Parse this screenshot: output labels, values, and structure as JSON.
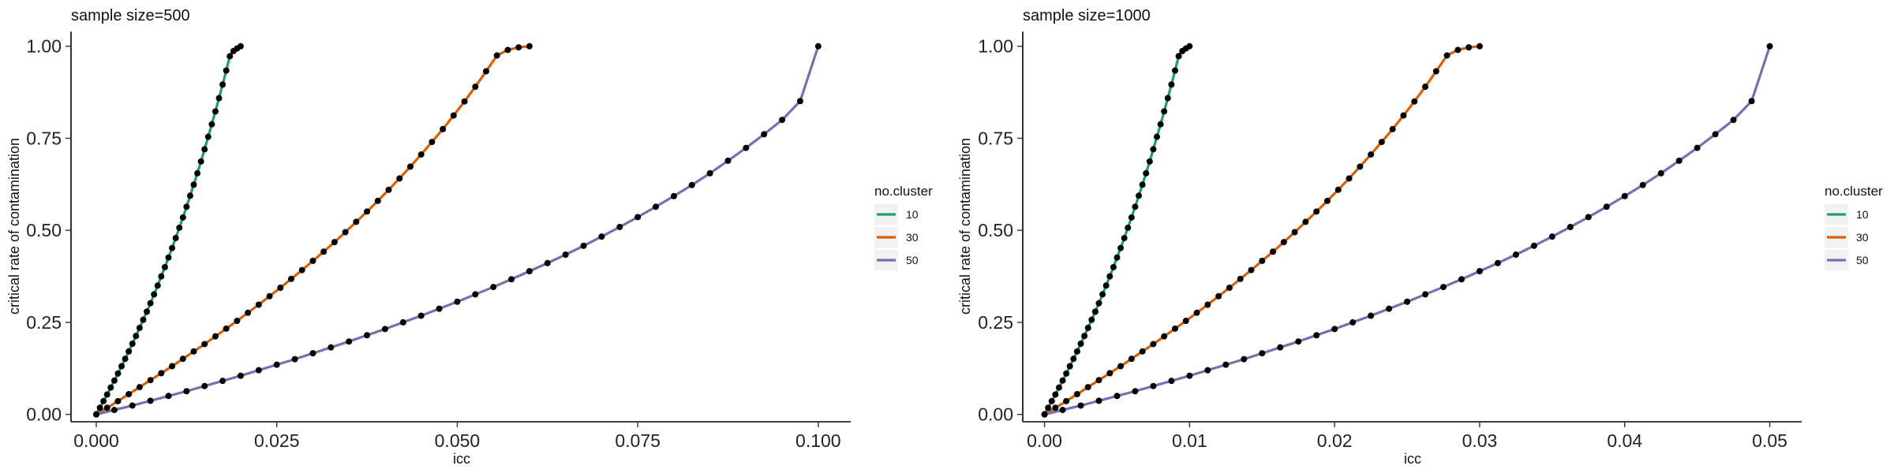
{
  "chart_data": [
    {
      "type": "line",
      "title": "sample size=500",
      "xlabel": "icc",
      "ylabel": "critical rate of contamination",
      "xlim": [
        -0.0035,
        0.1045
      ],
      "ylim": [
        -0.02,
        1.04
      ],
      "x_ticks": [
        0,
        0.025,
        0.05,
        0.075,
        0.1
      ],
      "x_tick_labels": [
        "0.000",
        "0.025",
        "0.050",
        "0.075",
        "0.100"
      ],
      "y_ticks": [
        0,
        0.25,
        0.5,
        0.75,
        1
      ],
      "y_tick_labels": [
        "0.00",
        "0.25",
        "0.50",
        "0.75",
        "1.00"
      ],
      "grid": false,
      "legend": {
        "title": "no.cluster",
        "placement": "right"
      },
      "series": [
        {
          "name": "10",
          "color": "#1b9e77",
          "x": [
            0,
            0.0005,
            0.001,
            0.0015,
            0.002,
            0.0025,
            0.003,
            0.0035,
            0.004,
            0.0045,
            0.005,
            0.0055,
            0.006,
            0.0065,
            0.007,
            0.0075,
            0.008,
            0.0085,
            0.009,
            0.0095,
            0.01,
            0.0105,
            0.011,
            0.0115,
            0.012,
            0.0125,
            0.013,
            0.0135,
            0.014,
            0.0145,
            0.015,
            0.0155,
            0.016,
            0.0165,
            0.017,
            0.0175,
            0.018,
            0.0185,
            0.019,
            0.0195,
            0.02
          ],
          "y": [
            0,
            0.018,
            0.036,
            0.054,
            0.073,
            0.092,
            0.111,
            0.131,
            0.151,
            0.171,
            0.192,
            0.213,
            0.235,
            0.257,
            0.279,
            0.302,
            0.326,
            0.35,
            0.375,
            0.4,
            0.426,
            0.452,
            0.479,
            0.507,
            0.535,
            0.564,
            0.594,
            0.624,
            0.655,
            0.687,
            0.72,
            0.754,
            0.788,
            0.823,
            0.859,
            0.896,
            0.934,
            0.973,
            0.987,
            0.994,
            1.0
          ],
          "markers": [
            0,
            0.0005,
            0.001,
            0.0015,
            0.002,
            0.0025,
            0.003,
            0.0035,
            0.004,
            0.0045,
            0.005,
            0.0055,
            0.006,
            0.0065,
            0.007,
            0.0075,
            0.008,
            0.0085,
            0.009,
            0.0095,
            0.01,
            0.0105,
            0.011,
            0.0115,
            0.012,
            0.0125,
            0.013,
            0.0135,
            0.014,
            0.0145,
            0.015,
            0.0155,
            0.016,
            0.0165,
            0.017,
            0.0175,
            0.018,
            0.0185,
            0.019,
            0.0195,
            0.02
          ]
        },
        {
          "name": "30",
          "color": "#d95f02",
          "x": [
            0,
            0.0015,
            0.003,
            0.0045,
            0.006,
            0.0075,
            0.009,
            0.0105,
            0.012,
            0.0135,
            0.015,
            0.0165,
            0.018,
            0.0195,
            0.021,
            0.0225,
            0.024,
            0.0255,
            0.027,
            0.0285,
            0.03,
            0.0315,
            0.033,
            0.0345,
            0.036,
            0.0375,
            0.039,
            0.0405,
            0.042,
            0.0435,
            0.045,
            0.0465,
            0.048,
            0.0495,
            0.051,
            0.0525,
            0.054,
            0.0555,
            0.057,
            0.0585,
            0.06
          ],
          "y": [
            0,
            0.018,
            0.036,
            0.055,
            0.074,
            0.093,
            0.112,
            0.131,
            0.151,
            0.171,
            0.191,
            0.212,
            0.233,
            0.254,
            0.276,
            0.298,
            0.321,
            0.344,
            0.368,
            0.392,
            0.417,
            0.442,
            0.468,
            0.495,
            0.523,
            0.551,
            0.58,
            0.61,
            0.641,
            0.673,
            0.706,
            0.74,
            0.775,
            0.812,
            0.85,
            0.89,
            0.932,
            0.975,
            0.99,
            0.997,
            1.0
          ],
          "markers": [
            0,
            0.0015,
            0.003,
            0.0045,
            0.006,
            0.0075,
            0.009,
            0.0105,
            0.012,
            0.0135,
            0.015,
            0.0165,
            0.018,
            0.0195,
            0.021,
            0.0225,
            0.024,
            0.0255,
            0.027,
            0.0285,
            0.03,
            0.0315,
            0.033,
            0.0345,
            0.036,
            0.0375,
            0.039,
            0.0405,
            0.042,
            0.0435,
            0.045,
            0.0465,
            0.048,
            0.0495,
            0.051,
            0.0525,
            0.054,
            0.0555,
            0.057,
            0.0585,
            0.06
          ]
        },
        {
          "name": "50",
          "color": "#7570b3",
          "x": [
            0,
            0.0025,
            0.005,
            0.0075,
            0.01,
            0.0125,
            0.015,
            0.0175,
            0.02,
            0.0225,
            0.025,
            0.0275,
            0.03,
            0.0325,
            0.035,
            0.0375,
            0.04,
            0.0425,
            0.045,
            0.0475,
            0.05,
            0.0525,
            0.055,
            0.0575,
            0.06,
            0.0625,
            0.065,
            0.0675,
            0.07,
            0.0725,
            0.075,
            0.0775,
            0.08,
            0.0825,
            0.085,
            0.0875,
            0.09,
            0.0925,
            0.095,
            0.0975,
            0.1
          ],
          "y": [
            0,
            0.012,
            0.024,
            0.037,
            0.05,
            0.063,
            0.077,
            0.091,
            0.105,
            0.12,
            0.135,
            0.15,
            0.166,
            0.182,
            0.198,
            0.215,
            0.232,
            0.25,
            0.268,
            0.287,
            0.306,
            0.326,
            0.346,
            0.367,
            0.389,
            0.411,
            0.434,
            0.458,
            0.483,
            0.509,
            0.536,
            0.564,
            0.593,
            0.623,
            0.655,
            0.689,
            0.724,
            0.761,
            0.8,
            0.851,
            1.0
          ],
          "markers": [
            0,
            0.0025,
            0.005,
            0.0075,
            0.01,
            0.0125,
            0.015,
            0.0175,
            0.02,
            0.0225,
            0.025,
            0.0275,
            0.03,
            0.0325,
            0.035,
            0.0375,
            0.04,
            0.0425,
            0.045,
            0.0475,
            0.05,
            0.0525,
            0.055,
            0.0575,
            0.06,
            0.0625,
            0.065,
            0.0675,
            0.07,
            0.0725,
            0.075,
            0.0775,
            0.08,
            0.0825,
            0.085,
            0.0875,
            0.09,
            0.0925,
            0.095,
            0.0975,
            0.1
          ]
        }
      ]
    },
    {
      "type": "line",
      "title": "sample size=1000",
      "xlabel": "icc",
      "ylabel": "critical rate of contamination",
      "xlim": [
        -0.0015,
        0.0522
      ],
      "ylim": [
        -0.02,
        1.04
      ],
      "x_ticks": [
        0,
        0.01,
        0.02,
        0.03,
        0.04,
        0.05
      ],
      "x_tick_labels": [
        "0.00",
        "0.01",
        "0.02",
        "0.03",
        "0.04",
        "0.05"
      ],
      "y_ticks": [
        0,
        0.25,
        0.5,
        0.75,
        1
      ],
      "y_tick_labels": [
        "0.00",
        "0.25",
        "0.50",
        "0.75",
        "1.00"
      ],
      "grid": false,
      "legend": {
        "title": "no.cluster",
        "placement": "right"
      },
      "series": [
        {
          "name": "10",
          "color": "#1b9e77",
          "x": [
            0,
            0.00025,
            0.0005,
            0.00075,
            0.001,
            0.00125,
            0.0015,
            0.00175,
            0.002,
            0.00225,
            0.0025,
            0.00275,
            0.003,
            0.00325,
            0.0035,
            0.00375,
            0.004,
            0.00425,
            0.0045,
            0.00475,
            0.005,
            0.00525,
            0.0055,
            0.00575,
            0.006,
            0.00625,
            0.0065,
            0.00675,
            0.007,
            0.00725,
            0.0075,
            0.00775,
            0.008,
            0.00825,
            0.0085,
            0.00875,
            0.009,
            0.00925,
            0.0095,
            0.00975,
            0.01
          ],
          "y": [
            0,
            0.018,
            0.036,
            0.054,
            0.073,
            0.092,
            0.111,
            0.131,
            0.151,
            0.171,
            0.192,
            0.213,
            0.235,
            0.257,
            0.279,
            0.302,
            0.326,
            0.35,
            0.375,
            0.4,
            0.426,
            0.452,
            0.479,
            0.507,
            0.535,
            0.564,
            0.594,
            0.624,
            0.655,
            0.687,
            0.72,
            0.754,
            0.788,
            0.823,
            0.859,
            0.896,
            0.934,
            0.973,
            0.987,
            0.994,
            1.0
          ],
          "markers": [
            0,
            0.00025,
            0.0005,
            0.00075,
            0.001,
            0.00125,
            0.0015,
            0.00175,
            0.002,
            0.00225,
            0.0025,
            0.00275,
            0.003,
            0.00325,
            0.0035,
            0.00375,
            0.004,
            0.00425,
            0.0045,
            0.00475,
            0.005,
            0.00525,
            0.0055,
            0.00575,
            0.006,
            0.00625,
            0.0065,
            0.00675,
            0.007,
            0.00725,
            0.0075,
            0.00775,
            0.008,
            0.00825,
            0.0085,
            0.00875,
            0.009,
            0.00925,
            0.0095,
            0.00975,
            0.01
          ]
        },
        {
          "name": "30",
          "color": "#d95f02",
          "x": [
            0,
            0.00075,
            0.0015,
            0.00225,
            0.003,
            0.00375,
            0.0045,
            0.00525,
            0.006,
            0.00675,
            0.0075,
            0.00825,
            0.009,
            0.00975,
            0.0105,
            0.01125,
            0.012,
            0.01275,
            0.0135,
            0.01425,
            0.015,
            0.01575,
            0.0165,
            0.01725,
            0.018,
            0.01875,
            0.0195,
            0.02025,
            0.021,
            0.02175,
            0.0225,
            0.02325,
            0.024,
            0.02475,
            0.0255,
            0.02625,
            0.027,
            0.02775,
            0.0285,
            0.02925,
            0.03
          ],
          "y": [
            0,
            0.018,
            0.036,
            0.055,
            0.074,
            0.093,
            0.112,
            0.131,
            0.151,
            0.171,
            0.191,
            0.212,
            0.233,
            0.254,
            0.276,
            0.298,
            0.321,
            0.344,
            0.368,
            0.392,
            0.417,
            0.442,
            0.468,
            0.495,
            0.523,
            0.551,
            0.58,
            0.61,
            0.641,
            0.673,
            0.706,
            0.74,
            0.775,
            0.812,
            0.85,
            0.89,
            0.932,
            0.975,
            0.99,
            0.997,
            1.0
          ],
          "markers": [
            0,
            0.00075,
            0.0015,
            0.00225,
            0.003,
            0.00375,
            0.0045,
            0.00525,
            0.006,
            0.00675,
            0.0075,
            0.00825,
            0.009,
            0.00975,
            0.0105,
            0.01125,
            0.012,
            0.01275,
            0.0135,
            0.01425,
            0.015,
            0.01575,
            0.0165,
            0.01725,
            0.018,
            0.01875,
            0.0195,
            0.02025,
            0.021,
            0.02175,
            0.0225,
            0.02325,
            0.024,
            0.02475,
            0.0255,
            0.02625,
            0.027,
            0.02775,
            0.0285,
            0.02925,
            0.03
          ]
        },
        {
          "name": "50",
          "color": "#7570b3",
          "x": [
            0,
            0.00125,
            0.0025,
            0.00375,
            0.005,
            0.00625,
            0.0075,
            0.00875,
            0.01,
            0.01125,
            0.0125,
            0.01375,
            0.015,
            0.01625,
            0.0175,
            0.01875,
            0.02,
            0.02125,
            0.0225,
            0.02375,
            0.025,
            0.02625,
            0.0275,
            0.02875,
            0.03,
            0.03125,
            0.0325,
            0.03375,
            0.035,
            0.03625,
            0.0375,
            0.03875,
            0.04,
            0.04125,
            0.0425,
            0.04375,
            0.045,
            0.04625,
            0.0475,
            0.04875,
            0.05
          ],
          "y": [
            0,
            0.012,
            0.024,
            0.037,
            0.05,
            0.063,
            0.077,
            0.091,
            0.105,
            0.12,
            0.135,
            0.15,
            0.166,
            0.182,
            0.198,
            0.215,
            0.232,
            0.25,
            0.268,
            0.287,
            0.306,
            0.326,
            0.346,
            0.367,
            0.389,
            0.411,
            0.434,
            0.458,
            0.483,
            0.509,
            0.536,
            0.564,
            0.593,
            0.623,
            0.655,
            0.689,
            0.724,
            0.761,
            0.8,
            0.851,
            1.0
          ],
          "markers": [
            0,
            0.00125,
            0.0025,
            0.00375,
            0.005,
            0.00625,
            0.0075,
            0.00875,
            0.01,
            0.01125,
            0.0125,
            0.01375,
            0.015,
            0.01625,
            0.0175,
            0.01875,
            0.02,
            0.02125,
            0.0225,
            0.02375,
            0.025,
            0.02625,
            0.0275,
            0.02875,
            0.03,
            0.03125,
            0.0325,
            0.03375,
            0.035,
            0.03625,
            0.0375,
            0.03875,
            0.04,
            0.04125,
            0.0425,
            0.04375,
            0.045,
            0.04625,
            0.0475,
            0.04875,
            0.05
          ]
        }
      ]
    }
  ]
}
